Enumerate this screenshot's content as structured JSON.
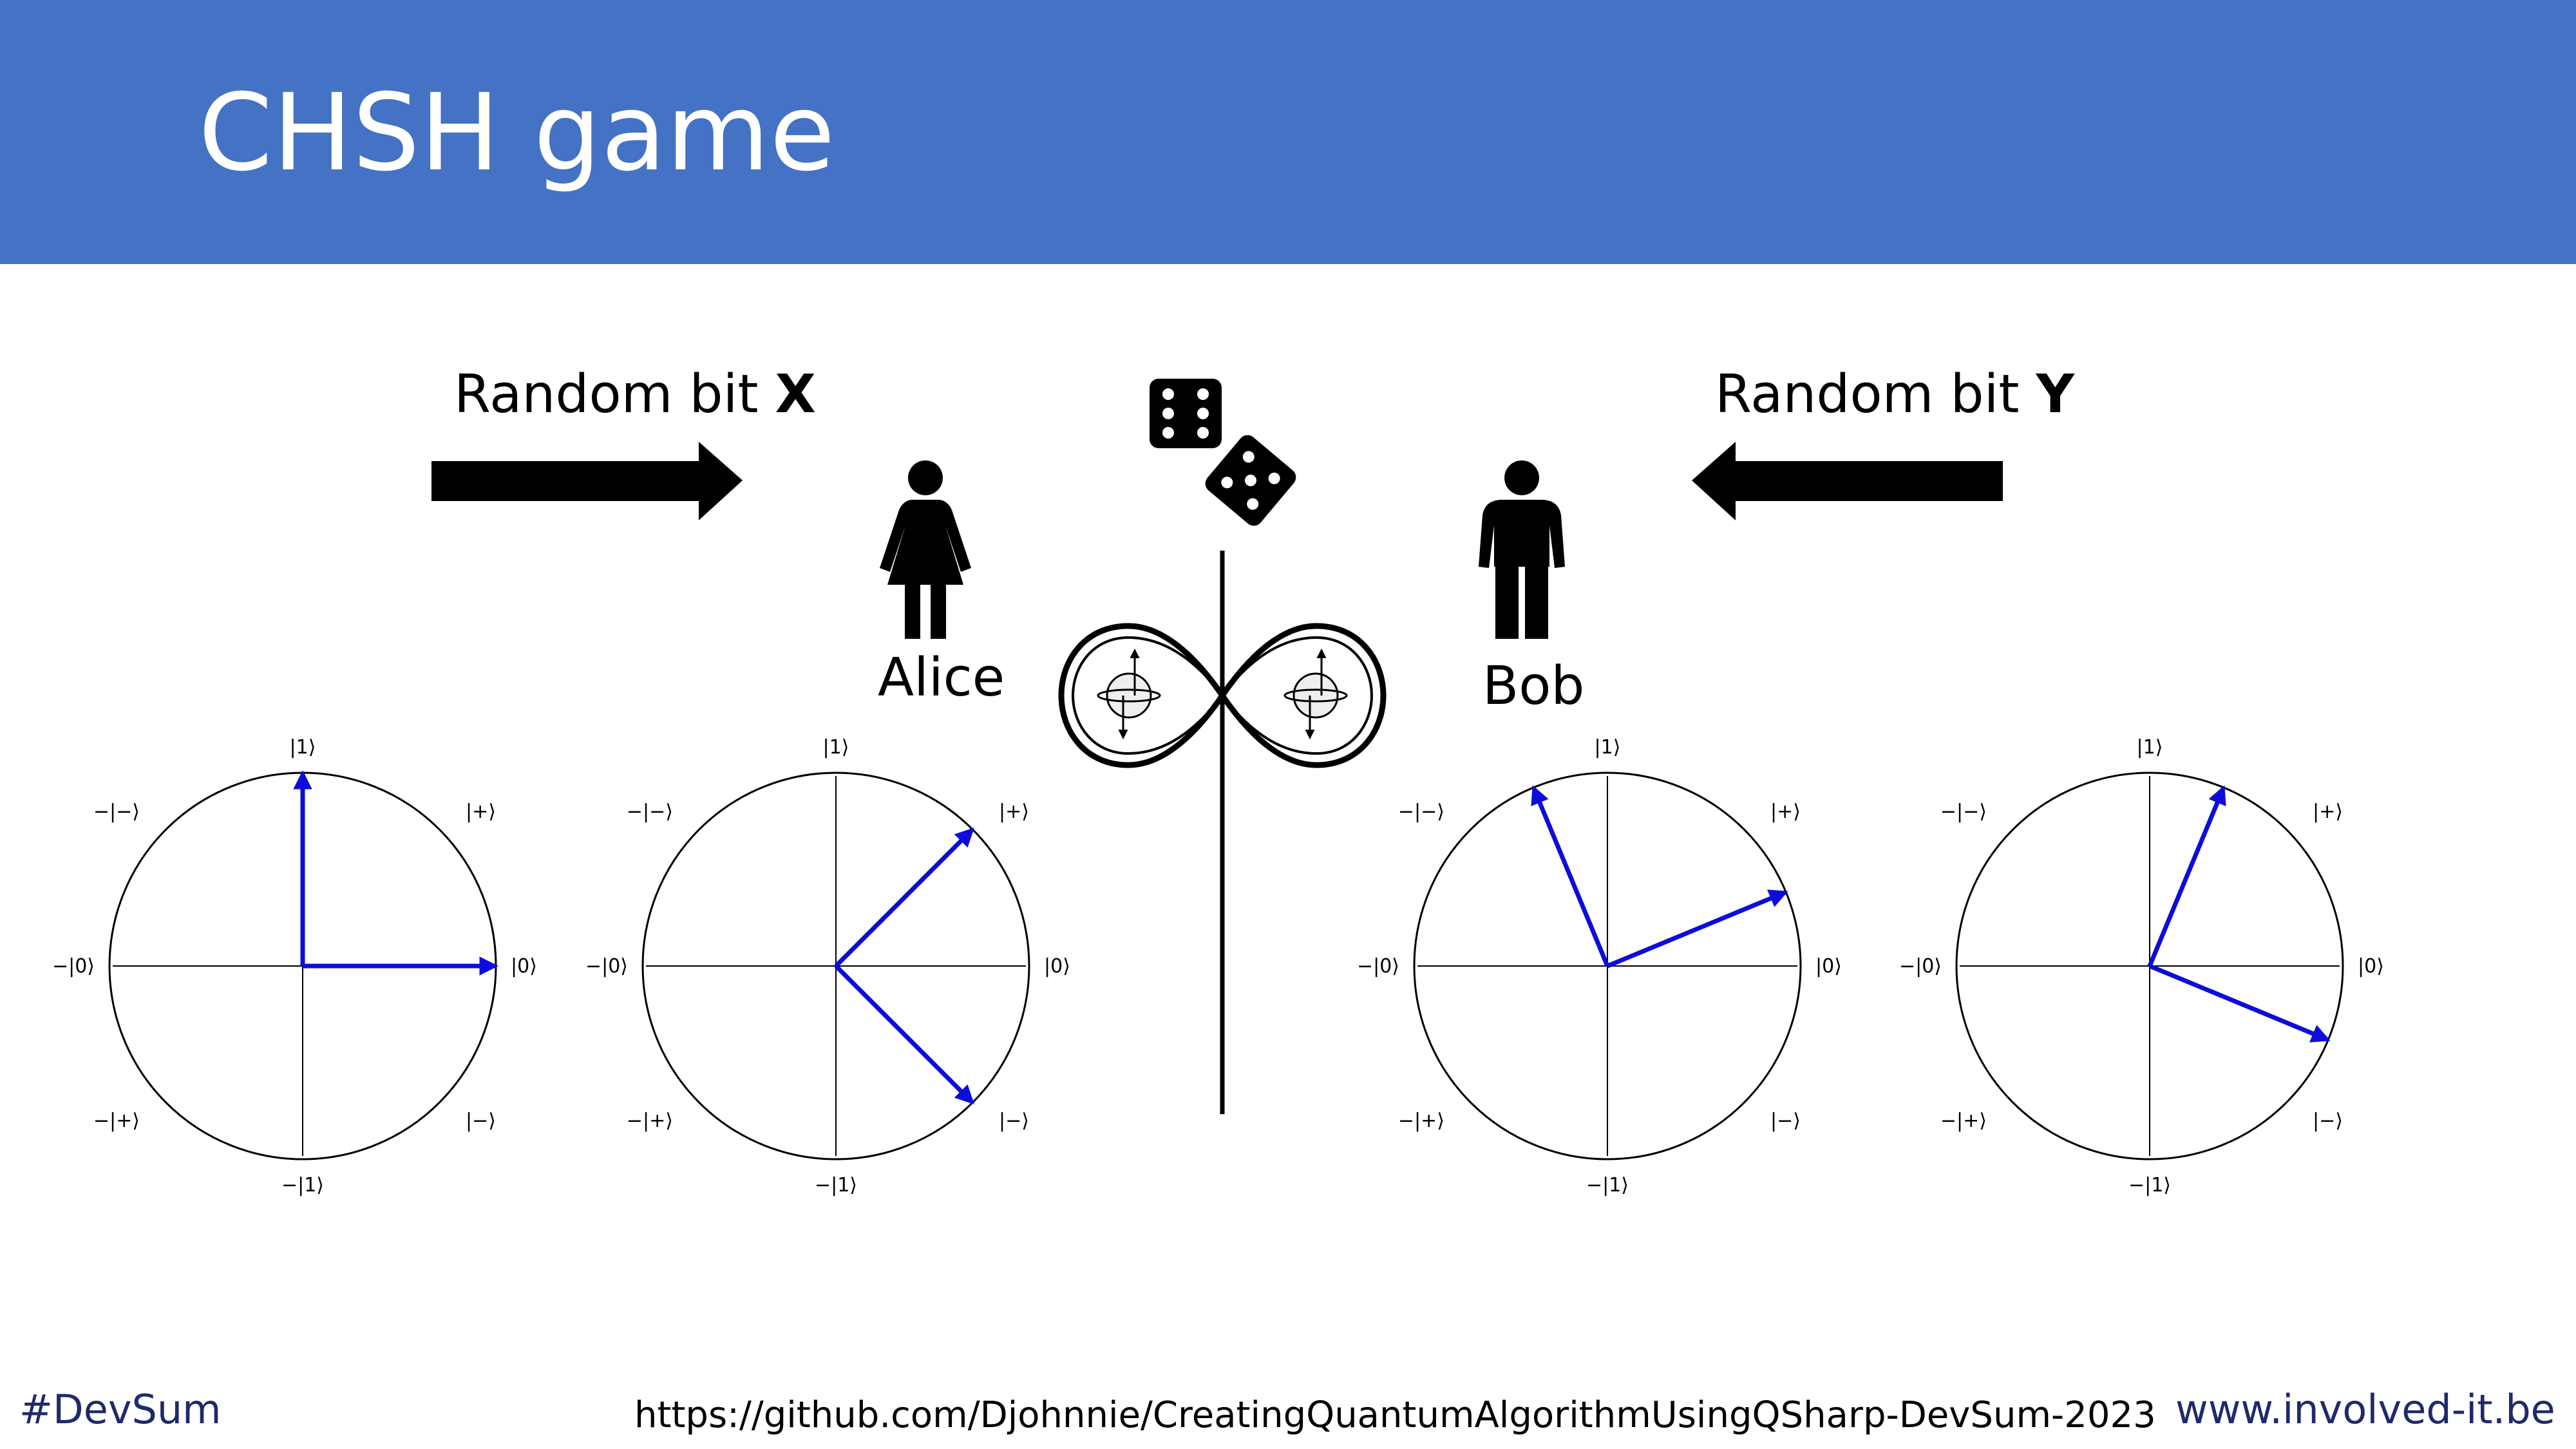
{
  "title": "CHSH game",
  "inputs": {
    "alice_prefix": "Random bit ",
    "alice_bit": "X",
    "bob_prefix": "Random bit ",
    "bob_bit": "Y"
  },
  "players": {
    "alice": "Alice",
    "bob": "Bob"
  },
  "state_labels": {
    "zero": "|0⟩",
    "one": "|1⟩",
    "neg_zero": "−|0⟩",
    "neg_one": "−|1⟩",
    "plus": "|+⟩",
    "minus": "|−⟩",
    "neg_plus": "−|+⟩",
    "neg_minus": "−|−⟩"
  },
  "bases": [
    {
      "owner": "Alice",
      "vector_angles_deg": [
        0,
        90
      ]
    },
    {
      "owner": "Alice",
      "vector_angles_deg": [
        45,
        -45
      ]
    },
    {
      "owner": "Bob",
      "vector_angles_deg": [
        22.5,
        112.5
      ]
    },
    {
      "owner": "Bob",
      "vector_angles_deg": [
        67.5,
        -22.5
      ]
    }
  ],
  "colors": {
    "header": "#4472c4",
    "vector": "#0d0dd9",
    "footer_text": "#1f2a6b"
  },
  "icons": [
    "arrow-right-icon",
    "arrow-left-icon",
    "woman-icon",
    "man-icon",
    "dice-icon",
    "entanglement-icon"
  ],
  "footer": {
    "hashtag": "#DevSum",
    "url": "https://github.com/Djohnnie/CreatingQuantumAlgorithmUsingQSharp-DevSum-2023",
    "site": "www.involved-it.be"
  }
}
